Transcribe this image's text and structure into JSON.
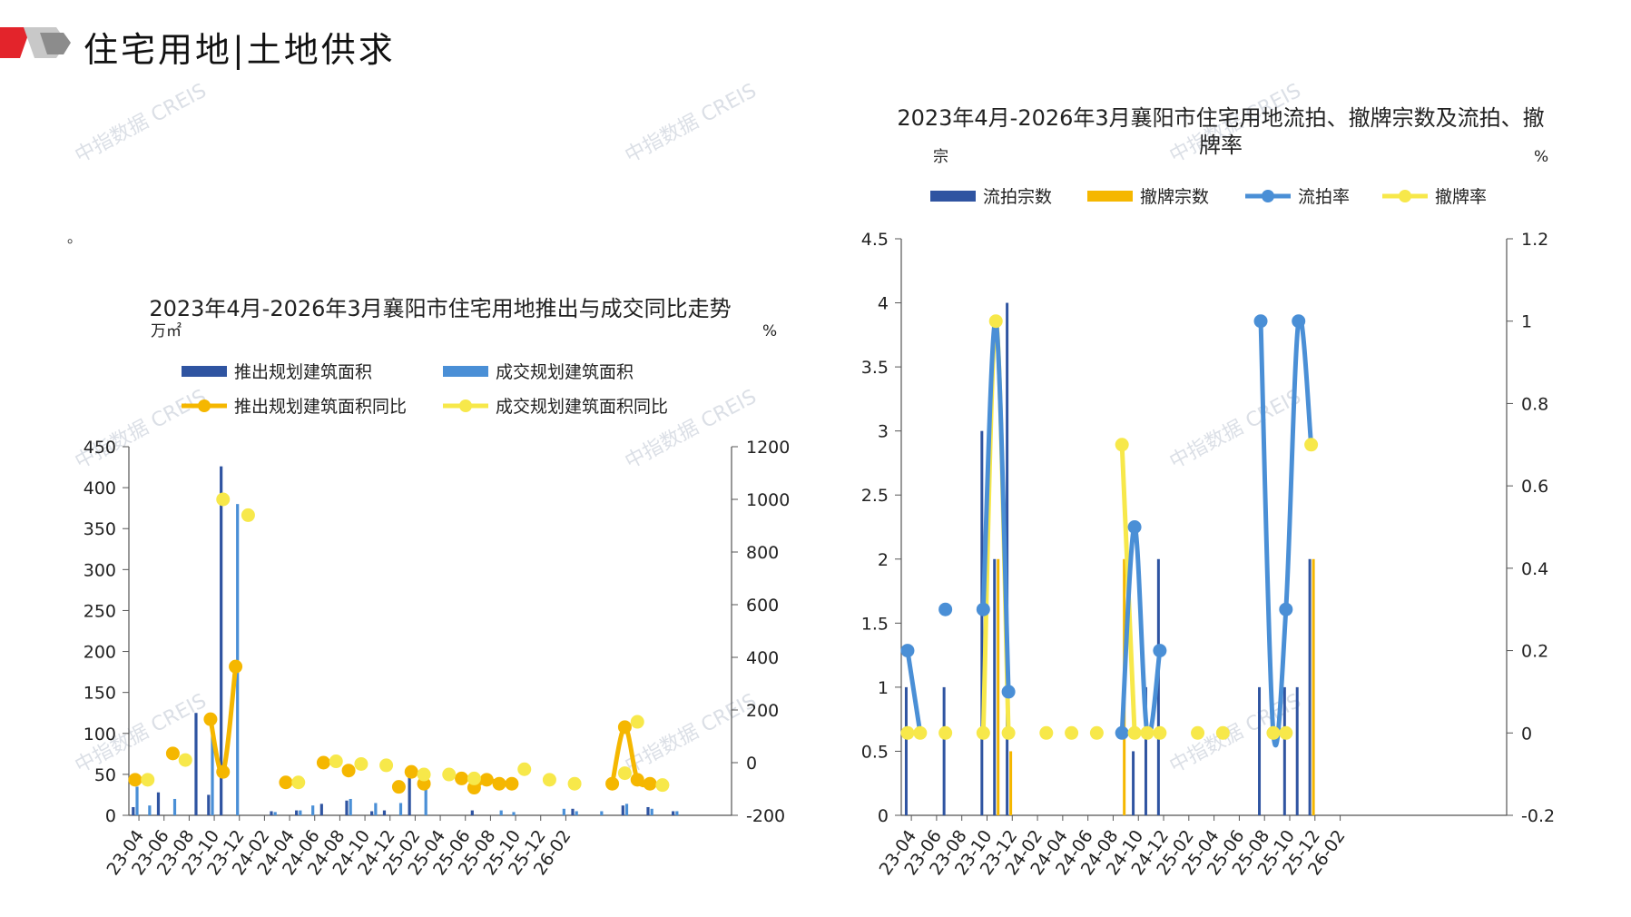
{
  "page": {
    "title": "住宅用地|土地供求",
    "note_mark": "。",
    "watermark": "中指数据 CREIS"
  },
  "colors": {
    "dark_blue": "#2f54a1",
    "mid_blue": "#4a8fd6",
    "orange": "#f5b700",
    "yellow": "#f7e84a",
    "logo_red": "#e3242b",
    "logo_gray": "#8c8c8c"
  },
  "chart_data": [
    {
      "type": "bar",
      "title": "2023年4月-2026年3月襄阳市住宅用地推出与成交同比走势",
      "left_unit": "万㎡",
      "right_unit": "%",
      "ylim": [
        0,
        450
      ],
      "yticks": [
        0,
        50,
        100,
        150,
        200,
        250,
        300,
        350,
        400,
        450
      ],
      "y2lim": [
        -200,
        1200
      ],
      "y2ticks": [
        -200,
        0,
        200,
        400,
        600,
        800,
        1000,
        1200
      ],
      "x_labels": [
        "23-04",
        "23-06",
        "23-08",
        "23-10",
        "23-12",
        "24-02",
        "24-04",
        "24-06",
        "24-08",
        "24-10",
        "24-12",
        "25-02",
        "25-04",
        "25-06",
        "25-08",
        "25-10",
        "25-12",
        "26-02"
      ],
      "legend": [
        "推出规划建筑面积",
        "成交规划建筑面积",
        "推出规划建筑面积同比",
        "成交规划建筑面积同比"
      ],
      "series": [
        {
          "name": "推出规划建筑面积",
          "kind": "bar",
          "values": [
            10,
            0,
            28,
            0,
            0,
            125,
            25,
            426,
            0,
            0,
            0,
            5,
            0,
            6,
            0,
            14,
            0,
            18,
            0,
            5,
            6,
            0,
            55,
            0,
            0,
            0,
            0,
            6,
            0,
            0,
            0,
            0,
            0,
            0,
            0,
            8,
            0,
            0,
            0,
            12,
            0,
            10,
            0,
            5,
            0,
            0,
            0,
            0
          ]
        },
        {
          "name": "成交规划建筑面积",
          "kind": "bar",
          "values": [
            35,
            12,
            0,
            20,
            0,
            0,
            108,
            0,
            380,
            0,
            0,
            4,
            0,
            6,
            12,
            0,
            0,
            20,
            0,
            15,
            0,
            15,
            0,
            45,
            0,
            0,
            0,
            0,
            0,
            6,
            4,
            0,
            0,
            0,
            8,
            5,
            0,
            5,
            0,
            14,
            0,
            8,
            0,
            5,
            0,
            0,
            0,
            0
          ]
        },
        {
          "name": "推出规划建筑面积同比",
          "kind": "line",
          "x": [
            0,
            2,
            4,
            5,
            6,
            9,
            11,
            17,
            19,
            21,
            22,
            23,
            24,
            25,
            26,
            27,
            28,
            29,
            31,
            32,
            33,
            34,
            35,
            36,
            38,
            39,
            40,
            41,
            42,
            43,
            44,
            45,
            46,
            47,
            49,
            50,
            51,
            52,
            53,
            54,
            55,
            56
          ],
          "values": [
            -65,
            35,
            null,
            165,
            -35,
            365,
            null,
            -65,
            15,
            -50,
            -80,
            -75,
            -40,
            -75,
            -65,
            -82,
            -50,
            -80,
            -80,
            -80,
            -75,
            -80,
            -80,
            -75,
            -80,
            -80,
            -80,
            -80,
            -80,
            -80,
            -80,
            -80,
            -80,
            -80,
            -80,
            -80,
            -80,
            -80,
            -80,
            -80,
            -80,
            -80
          ],
          "segments": [
            [
              [
                6,
                165
              ],
              [
                7,
                -35
              ],
              [
                8,
                365
              ]
            ],
            [
              [
                27,
                -95
              ],
              [
                28,
                -65
              ],
              [
                29,
                -80
              ]
            ],
            [
              [
                38,
                -80
              ],
              [
                39,
                135
              ],
              [
                40,
                -65
              ],
              [
                41,
                -80
              ]
            ]
          ],
          "points": [
            [
              0,
              -65
            ],
            [
              3,
              35
            ],
            [
              6,
              165
            ],
            [
              7,
              -35
            ],
            [
              8,
              365
            ],
            [
              12,
              -75
            ],
            [
              15,
              0
            ],
            [
              17,
              -30
            ],
            [
              21,
              -92
            ],
            [
              23,
              -80
            ],
            [
              28,
              -65
            ],
            [
              30,
              -80
            ],
            [
              29,
              -80
            ],
            [
              27,
              -95
            ],
            [
              22,
              -35
            ],
            [
              26,
              -60
            ],
            [
              38,
              -80
            ],
            [
              39,
              135
            ],
            [
              40,
              -65
            ],
            [
              41,
              -80
            ]
          ]
        },
        {
          "name": "成交规划建筑面积同比",
          "kind": "line",
          "points": [
            [
              1,
              -65
            ],
            [
              4,
              10
            ],
            [
              7,
              1000
            ],
            [
              9,
              940
            ],
            [
              13,
              -75
            ],
            [
              16,
              5
            ],
            [
              18,
              -5
            ],
            [
              20,
              -10
            ],
            [
              23,
              -45
            ],
            [
              25,
              -45
            ],
            [
              27,
              -60
            ],
            [
              31,
              -25
            ],
            [
              33,
              -65
            ],
            [
              35,
              -80
            ],
            [
              39,
              -40
            ],
            [
              40,
              155
            ],
            [
              42,
              -85
            ]
          ]
        }
      ]
    },
    {
      "type": "bar",
      "title": "2023年4月-2026年3月襄阳市住宅用地流拍、撤牌宗数及流拍、撤牌率",
      "left_unit": "宗",
      "right_unit": "%",
      "ylim": [
        0,
        4.5
      ],
      "yticks": [
        "0",
        "0.5",
        "1",
        "1.5",
        "2",
        "2.5",
        "3",
        "3.5",
        "4",
        "4.5"
      ],
      "y2lim": [
        -0.2,
        1.2
      ],
      "y2ticks": [
        "-0.2",
        "0",
        "0.2",
        "0.4",
        "0.6",
        "0.8",
        "1",
        "1.2"
      ],
      "x_labels": [
        "23-04",
        "23-06",
        "23-08",
        "23-10",
        "23-12",
        "24-02",
        "24-04",
        "24-06",
        "24-08",
        "24-10",
        "24-12",
        "25-02",
        "25-04",
        "25-06",
        "25-08",
        "25-10",
        "25-12",
        "26-02"
      ],
      "legend": [
        "流拍宗数",
        "撤牌宗数",
        "流拍率",
        "撤牌率"
      ],
      "series": [
        {
          "name": "流拍宗数",
          "kind": "bar",
          "points": [
            [
              0,
              1
            ],
            [
              3,
              1
            ],
            [
              6,
              3
            ],
            [
              7,
              2
            ],
            [
              8,
              4
            ],
            [
              18,
              0.5
            ],
            [
              19,
              1
            ],
            [
              20,
              2
            ],
            [
              28,
              1
            ],
            [
              30,
              1
            ],
            [
              31,
              1
            ],
            [
              32,
              2
            ]
          ]
        },
        {
          "name": "撤牌宗数",
          "kind": "bar",
          "points": [
            [
              7,
              2
            ],
            [
              8,
              0.5
            ],
            [
              17,
              2
            ],
            [
              32,
              2
            ]
          ]
        },
        {
          "name": "流拍率",
          "kind": "line",
          "segments": [
            [
              [
                0,
                0.2
              ],
              [
                1,
                0
              ]
            ],
            [
              [
                6,
                0.3
              ],
              [
                7,
                1
              ],
              [
                8,
                0.1
              ]
            ],
            [
              [
                17,
                0
              ],
              [
                18,
                0.5
              ],
              [
                19,
                0
              ],
              [
                20,
                0.2
              ]
            ],
            [
              [
                28,
                1
              ],
              [
                29,
                0
              ],
              [
                30,
                0.3
              ],
              [
                31,
                1
              ],
              [
                32,
                0.7
              ]
            ]
          ],
          "points": [
            [
              0,
              0.2
            ],
            [
              3,
              0.3
            ],
            [
              6,
              0.3
            ],
            [
              8,
              0.1
            ],
            [
              17,
              0
            ],
            [
              18,
              0.5
            ],
            [
              20,
              0.2
            ],
            [
              28,
              1
            ],
            [
              30,
              0.3
            ],
            [
              31,
              1
            ]
          ]
        },
        {
          "name": "撤牌率",
          "kind": "line",
          "segments": [
            [
              [
                6,
                0
              ],
              [
                7,
                1
              ],
              [
                8,
                0
              ]
            ],
            [
              [
                17,
                0.7
              ],
              [
                18,
                0
              ]
            ]
          ],
          "points": [
            [
              0,
              0
            ],
            [
              1,
              0
            ],
            [
              3,
              0
            ],
            [
              6,
              0
            ],
            [
              7,
              1
            ],
            [
              8,
              0
            ],
            [
              11,
              0
            ],
            [
              13,
              0
            ],
            [
              15,
              0
            ],
            [
              17,
              0.7
            ],
            [
              18,
              0
            ],
            [
              19,
              0
            ],
            [
              20,
              0
            ],
            [
              23,
              0
            ],
            [
              25,
              0
            ],
            [
              29,
              0
            ],
            [
              30,
              0
            ],
            [
              32,
              0.7
            ]
          ]
        }
      ]
    }
  ]
}
